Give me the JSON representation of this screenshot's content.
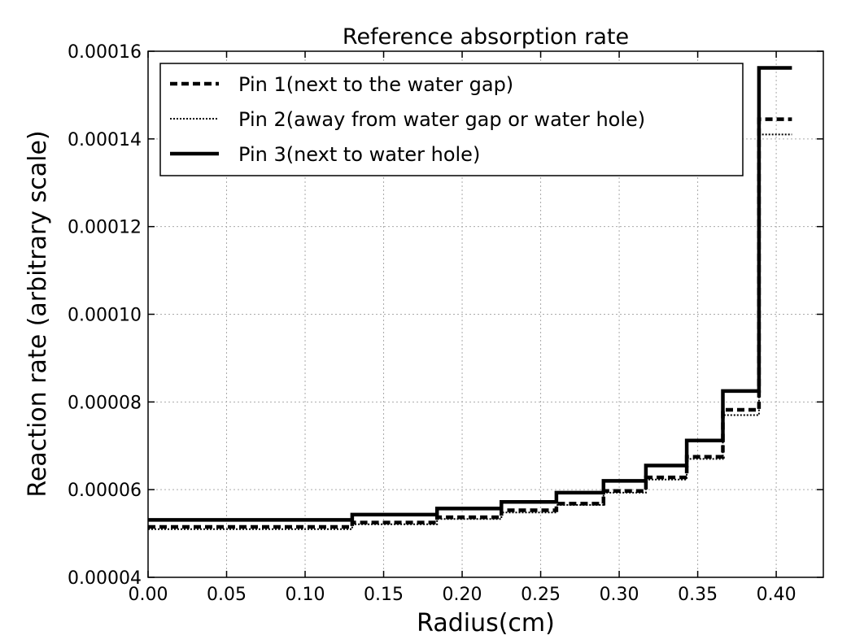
{
  "chart_data": {
    "type": "line",
    "title": "Reference absorption rate",
    "xlabel": "Radius(cm)",
    "ylabel": "Reaction rate (arbitrary scale)",
    "xlim": [
      0.0,
      0.43
    ],
    "ylim": [
      4e-05,
      0.00016
    ],
    "x_ticks": [
      "0.00",
      "0.05",
      "0.10",
      "0.15",
      "0.20",
      "0.25",
      "0.30",
      "0.35",
      "0.40"
    ],
    "y_ticks": [
      "0.00004",
      "0.00006",
      "0.00008",
      "0.00010",
      "0.00012",
      "0.00014",
      "0.00016"
    ],
    "x_tick_values": [
      0.0,
      0.05,
      0.1,
      0.15,
      0.2,
      0.25,
      0.3,
      0.35,
      0.4
    ],
    "y_tick_values": [
      4e-05,
      6e-05,
      8e-05,
      0.0001,
      0.00012,
      0.00014,
      0.00016
    ],
    "grid": true,
    "legend_position": "top-left",
    "step_edges": [
      0.0,
      0.13,
      0.184,
      0.225,
      0.26,
      0.29,
      0.317,
      0.343,
      0.366,
      0.389,
      0.41
    ],
    "series": [
      {
        "name": "Pin 1(next to the water gap)",
        "style": "dashed",
        "color": "#000000",
        "values": [
          5.15e-05,
          5.25e-05,
          5.37e-05,
          5.53e-05,
          5.68e-05,
          5.97e-05,
          6.28e-05,
          6.75e-05,
          7.82e-05,
          0.0001445
        ]
      },
      {
        "name": "Pin 2(away from water gap or water hole)",
        "style": "dotted",
        "color": "#000000",
        "values": [
          5.1e-05,
          5.21e-05,
          5.33e-05,
          5.48e-05,
          5.65e-05,
          5.93e-05,
          6.23e-05,
          6.7e-05,
          7.7e-05,
          0.000141
        ]
      },
      {
        "name": "Pin 3(next to water hole)",
        "style": "solid",
        "color": "#000000",
        "values": [
          5.31e-05,
          5.43e-05,
          5.57e-05,
          5.72e-05,
          5.93e-05,
          6.2e-05,
          6.55e-05,
          7.12e-05,
          8.25e-05,
          0.0001562
        ]
      }
    ]
  }
}
